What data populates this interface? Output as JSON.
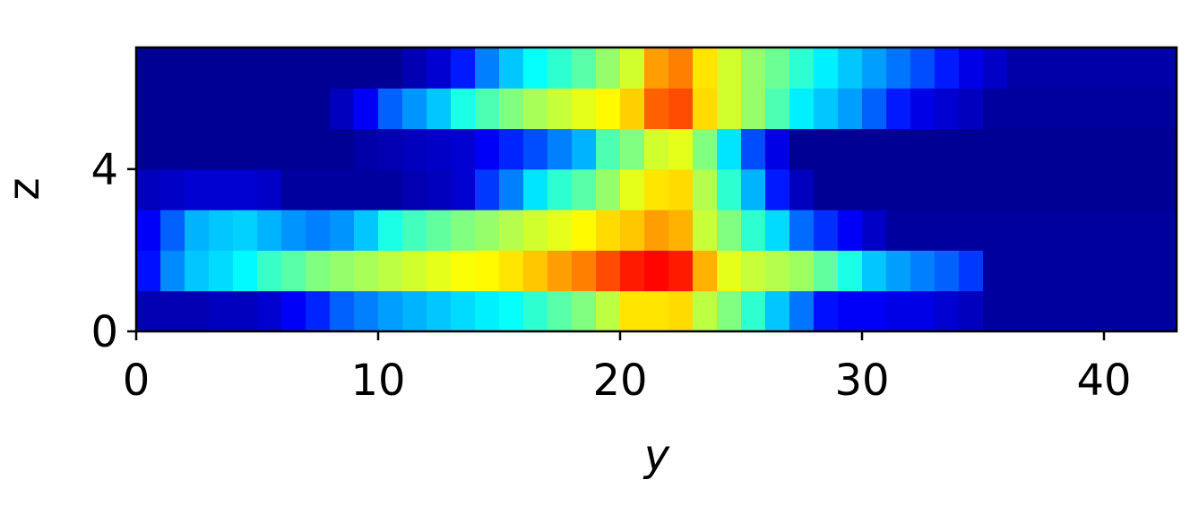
{
  "chart_data": {
    "type": "heatmap",
    "xlabel": "y",
    "ylabel": "z",
    "colormap": "jet",
    "clim": [
      0,
      1
    ],
    "xlim": [
      0,
      43
    ],
    "ylim": [
      0,
      7
    ],
    "xticks": [
      0,
      10,
      20,
      30,
      40
    ],
    "yticks": [
      0,
      4
    ],
    "z": [
      [
        0.05,
        0.05,
        0.05,
        0.06,
        0.06,
        0.08,
        0.12,
        0.16,
        0.22,
        0.25,
        0.28,
        0.3,
        0.32,
        0.34,
        0.36,
        0.38,
        0.42,
        0.46,
        0.5,
        0.56,
        0.65,
        0.65,
        0.66,
        0.56,
        0.5,
        0.42,
        0.32,
        0.24,
        0.14,
        0.12,
        0.12,
        0.1,
        0.1,
        0.08,
        0.06,
        0.03,
        0.03,
        0.03,
        0.03,
        0.03,
        0.03,
        0.03,
        0.03
      ],
      [
        0.14,
        0.26,
        0.32,
        0.34,
        0.37,
        0.43,
        0.46,
        0.5,
        0.52,
        0.54,
        0.56,
        0.58,
        0.6,
        0.62,
        0.63,
        0.65,
        0.68,
        0.72,
        0.75,
        0.8,
        0.85,
        0.87,
        0.85,
        0.7,
        0.6,
        0.57,
        0.55,
        0.53,
        0.47,
        0.4,
        0.32,
        0.28,
        0.25,
        0.22,
        0.18,
        0.03,
        0.03,
        0.03,
        0.03,
        0.03,
        0.03,
        0.03,
        0.03
      ],
      [
        0.12,
        0.22,
        0.3,
        0.32,
        0.33,
        0.3,
        0.27,
        0.25,
        0.27,
        0.32,
        0.4,
        0.44,
        0.47,
        0.5,
        0.52,
        0.55,
        0.58,
        0.6,
        0.63,
        0.66,
        0.68,
        0.72,
        0.7,
        0.57,
        0.5,
        0.42,
        0.34,
        0.23,
        0.17,
        0.12,
        0.07,
        0.03,
        0.03,
        0.03,
        0.03,
        0.03,
        0.03,
        0.03,
        0.03,
        0.03,
        0.03,
        0.03,
        0.03
      ],
      [
        0.06,
        0.07,
        0.08,
        0.08,
        0.08,
        0.07,
        0.03,
        0.03,
        0.03,
        0.03,
        0.03,
        0.05,
        0.06,
        0.08,
        0.18,
        0.25,
        0.35,
        0.42,
        0.46,
        0.52,
        0.6,
        0.65,
        0.66,
        0.55,
        0.42,
        0.3,
        0.15,
        0.06,
        0.02,
        0.02,
        0.02,
        0.02,
        0.02,
        0.02,
        0.02,
        0.02,
        0.02,
        0.02,
        0.02,
        0.02,
        0.02,
        0.02,
        0.02
      ],
      [
        0.02,
        0.02,
        0.02,
        0.02,
        0.02,
        0.02,
        0.02,
        0.02,
        0.02,
        0.04,
        0.05,
        0.06,
        0.07,
        0.08,
        0.12,
        0.16,
        0.2,
        0.25,
        0.3,
        0.45,
        0.5,
        0.58,
        0.6,
        0.5,
        0.35,
        0.2,
        0.1,
        0.02,
        0.02,
        0.02,
        0.02,
        0.02,
        0.02,
        0.02,
        0.02,
        0.02,
        0.02,
        0.02,
        0.02,
        0.02,
        0.02,
        0.02,
        0.02
      ],
      [
        0.02,
        0.02,
        0.02,
        0.02,
        0.02,
        0.02,
        0.02,
        0.02,
        0.06,
        0.12,
        0.22,
        0.27,
        0.32,
        0.4,
        0.45,
        0.5,
        0.54,
        0.57,
        0.6,
        0.63,
        0.67,
        0.78,
        0.8,
        0.66,
        0.58,
        0.52,
        0.45,
        0.36,
        0.32,
        0.28,
        0.22,
        0.15,
        0.1,
        0.08,
        0.06,
        0.03,
        0.03,
        0.03,
        0.03,
        0.03,
        0.03,
        0.03,
        0.03
      ],
      [
        0.02,
        0.02,
        0.02,
        0.02,
        0.02,
        0.02,
        0.02,
        0.02,
        0.02,
        0.02,
        0.02,
        0.05,
        0.08,
        0.15,
        0.25,
        0.32,
        0.38,
        0.42,
        0.46,
        0.52,
        0.58,
        0.72,
        0.75,
        0.65,
        0.58,
        0.52,
        0.48,
        0.42,
        0.36,
        0.32,
        0.28,
        0.24,
        0.2,
        0.15,
        0.1,
        0.07,
        0.04,
        0.04,
        0.04,
        0.04,
        0.04,
        0.04,
        0.04
      ]
    ]
  }
}
